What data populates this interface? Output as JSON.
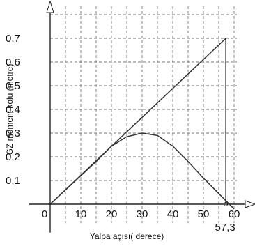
{
  "chart_data": {
    "type": "line",
    "xlabel": "Yalpa açısı( derece)",
    "ylabel": "GZ moment kolu (metre)",
    "xlim": [
      0,
      60
    ],
    "ylim": [
      0,
      0.8
    ],
    "grid": true,
    "grid_style": "dashed",
    "x_ticks": [
      {
        "value": 0,
        "label": "0"
      },
      {
        "value": 10,
        "label": "10"
      },
      {
        "value": 20,
        "label": "20"
      },
      {
        "value": 30,
        "label": "30"
      },
      {
        "value": 40,
        "label": "40"
      },
      {
        "value": 50,
        "label": "50"
      },
      {
        "value": 60,
        "label": "60"
      }
    ],
    "y_ticks": [
      {
        "value": 0.1,
        "label": "0,1"
      },
      {
        "value": 0.2,
        "label": "0,2"
      },
      {
        "value": 0.3,
        "label": "0,3"
      },
      {
        "value": 0.4,
        "label": "0,4"
      },
      {
        "value": 0.5,
        "label": "0,5"
      },
      {
        "value": 0.6,
        "label": "0,6"
      },
      {
        "value": 0.7,
        "label": "0,7"
      }
    ],
    "series": [
      {
        "kind": "curve",
        "x": [
          0,
          5,
          10,
          15,
          20,
          25,
          30,
          35,
          40,
          45,
          50,
          55,
          60
        ],
        "y": [
          0,
          0.06,
          0.12,
          0.18,
          0.245,
          0.285,
          0.3,
          0.29,
          0.245,
          0.18,
          0.11,
          0.045,
          -0.02
        ]
      },
      {
        "kind": "tangent",
        "x": [
          0,
          57.3
        ],
        "y": [
          0,
          0.7
        ]
      }
    ],
    "annotations": [
      {
        "kind": "vertical-line",
        "x": 57.3,
        "y_from": 0,
        "y_to": 0.7
      },
      {
        "kind": "marker",
        "x": 57.3,
        "y": 0,
        "label": "57,3"
      }
    ]
  }
}
